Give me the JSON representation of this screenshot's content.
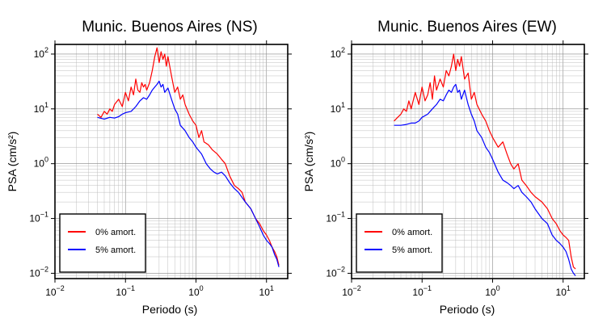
{
  "chart_data": [
    {
      "type": "line",
      "title": "Munic. Buenos Aires (NS)",
      "xlabel": "Periodo (s)",
      "ylabel": "PSA (cm/s²)",
      "xscale": "log",
      "yscale": "log",
      "xlim": [
        0.01,
        20
      ],
      "ylim": [
        0.008,
        150
      ],
      "grid": true,
      "legend_position": "bottom-left",
      "x_ticks": [
        {
          "value": 0.01,
          "base": "10",
          "exp": "−2"
        },
        {
          "value": 0.1,
          "base": "10",
          "exp": "−1"
        },
        {
          "value": 1,
          "base": "10",
          "exp": "0"
        },
        {
          "value": 10,
          "base": "10",
          "exp": "1"
        }
      ],
      "y_ticks": [
        {
          "value": 0.01,
          "base": "10",
          "exp": "−2"
        },
        {
          "value": 0.1,
          "base": "10",
          "exp": "−1"
        },
        {
          "value": 1,
          "base": "10",
          "exp": "0"
        },
        {
          "value": 10,
          "base": "10",
          "exp": "1"
        },
        {
          "value": 100,
          "base": "10",
          "exp": "2"
        }
      ],
      "series": [
        {
          "name": "0% amort.",
          "color": "#ff0000",
          "x": [
            0.04,
            0.045,
            0.05,
            0.055,
            0.06,
            0.065,
            0.07,
            0.08,
            0.09,
            0.1,
            0.11,
            0.12,
            0.13,
            0.14,
            0.15,
            0.16,
            0.17,
            0.18,
            0.19,
            0.2,
            0.22,
            0.24,
            0.26,
            0.28,
            0.3,
            0.32,
            0.34,
            0.36,
            0.38,
            0.4,
            0.45,
            0.5,
            0.55,
            0.6,
            0.65,
            0.7,
            0.8,
            0.9,
            1.0,
            1.1,
            1.2,
            1.3,
            1.5,
            1.7,
            2.0,
            2.3,
            2.6,
            3.0,
            3.5,
            4.0,
            4.5,
            5.0,
            6.0,
            7.0,
            8.0,
            9.0,
            10,
            11,
            12,
            13,
            14,
            15
          ],
          "y": [
            8,
            7,
            9,
            8,
            10,
            9,
            12,
            15,
            11,
            20,
            14,
            25,
            18,
            35,
            22,
            20,
            30,
            25,
            28,
            22,
            30,
            50,
            90,
            130,
            70,
            110,
            80,
            100,
            60,
            90,
            40,
            20,
            25,
            15,
            18,
            12,
            8,
            6,
            5,
            3,
            4,
            2.5,
            2.2,
            1.8,
            1.5,
            1.2,
            1.0,
            0.6,
            0.4,
            0.35,
            0.3,
            0.2,
            0.15,
            0.1,
            0.08,
            0.06,
            0.05,
            0.04,
            0.03,
            0.025,
            0.02,
            0.014
          ]
        },
        {
          "name": "5% amort.",
          "color": "#0000ff",
          "x": [
            0.04,
            0.05,
            0.06,
            0.07,
            0.08,
            0.09,
            0.1,
            0.12,
            0.14,
            0.16,
            0.18,
            0.2,
            0.22,
            0.24,
            0.26,
            0.28,
            0.3,
            0.32,
            0.34,
            0.36,
            0.4,
            0.45,
            0.5,
            0.55,
            0.6,
            0.7,
            0.8,
            0.9,
            1.0,
            1.2,
            1.4,
            1.6,
            1.8,
            2.0,
            2.3,
            2.6,
            3.0,
            3.5,
            4.0,
            5.0,
            6.0,
            7.0,
            8.0,
            9.0,
            10,
            11,
            12,
            13,
            14,
            15
          ],
          "y": [
            7,
            6.5,
            7,
            6.8,
            7.2,
            8,
            8.5,
            9,
            11,
            14,
            16,
            15,
            18,
            22,
            25,
            28,
            32,
            25,
            28,
            20,
            24,
            15,
            10,
            8,
            5,
            4,
            3,
            2.5,
            2.0,
            1.5,
            1.0,
            0.8,
            0.7,
            0.65,
            0.7,
            0.6,
            0.45,
            0.35,
            0.3,
            0.2,
            0.15,
            0.1,
            0.07,
            0.05,
            0.04,
            0.035,
            0.03,
            0.022,
            0.018,
            0.013
          ]
        }
      ]
    },
    {
      "type": "line",
      "title": "Munic. Buenos Aires (EW)",
      "xlabel": "Periodo (s)",
      "ylabel": "PSA (cm/s²)",
      "xscale": "log",
      "yscale": "log",
      "xlim": [
        0.01,
        20
      ],
      "ylim": [
        0.008,
        150
      ],
      "grid": true,
      "legend_position": "bottom-left",
      "x_ticks": [
        {
          "value": 0.01,
          "base": "10",
          "exp": "−2"
        },
        {
          "value": 0.1,
          "base": "10",
          "exp": "−1"
        },
        {
          "value": 1,
          "base": "10",
          "exp": "0"
        },
        {
          "value": 10,
          "base": "10",
          "exp": "1"
        }
      ],
      "y_ticks": [
        {
          "value": 0.01,
          "base": "10",
          "exp": "−2"
        },
        {
          "value": 0.1,
          "base": "10",
          "exp": "−1"
        },
        {
          "value": 1,
          "base": "10",
          "exp": "0"
        },
        {
          "value": 10,
          "base": "10",
          "exp": "1"
        },
        {
          "value": 100,
          "base": "10",
          "exp": "2"
        }
      ],
      "series": [
        {
          "name": "0% amort.",
          "color": "#ff0000",
          "x": [
            0.04,
            0.045,
            0.05,
            0.055,
            0.06,
            0.065,
            0.07,
            0.08,
            0.09,
            0.1,
            0.11,
            0.12,
            0.13,
            0.14,
            0.15,
            0.16,
            0.18,
            0.2,
            0.22,
            0.24,
            0.26,
            0.28,
            0.3,
            0.32,
            0.34,
            0.36,
            0.4,
            0.45,
            0.5,
            0.55,
            0.6,
            0.7,
            0.8,
            0.9,
            1.0,
            1.2,
            1.4,
            1.6,
            1.8,
            2.0,
            2.3,
            2.6,
            3.0,
            3.5,
            4.0,
            5.0,
            6.0,
            7.0,
            8.0,
            9.0,
            10,
            11,
            12,
            13,
            14,
            15
          ],
          "y": [
            6,
            7,
            8,
            10,
            9,
            14,
            10,
            20,
            12,
            25,
            14,
            18,
            30,
            15,
            40,
            22,
            35,
            25,
            50,
            40,
            60,
            100,
            50,
            80,
            60,
            90,
            35,
            45,
            15,
            20,
            12,
            8,
            6,
            4,
            3,
            2.0,
            2.5,
            1.5,
            1.0,
            0.8,
            1.0,
            0.5,
            0.4,
            0.3,
            0.25,
            0.2,
            0.15,
            0.1,
            0.08,
            0.06,
            0.05,
            0.045,
            0.04,
            0.02,
            0.013,
            0.012
          ]
        },
        {
          "name": "5% amort.",
          "color": "#0000ff",
          "x": [
            0.04,
            0.05,
            0.06,
            0.07,
            0.08,
            0.09,
            0.1,
            0.12,
            0.14,
            0.16,
            0.18,
            0.2,
            0.22,
            0.24,
            0.26,
            0.28,
            0.3,
            0.32,
            0.34,
            0.36,
            0.4,
            0.45,
            0.5,
            0.55,
            0.6,
            0.7,
            0.8,
            0.9,
            1.0,
            1.2,
            1.4,
            1.6,
            1.8,
            2.0,
            2.3,
            2.6,
            3.0,
            3.5,
            4.0,
            5.0,
            6.0,
            7.0,
            8.0,
            9.0,
            10,
            11,
            12,
            13,
            14,
            15
          ],
          "y": [
            5,
            5,
            5.2,
            5.5,
            5.5,
            6,
            7,
            8,
            10,
            12,
            15,
            14,
            18,
            22,
            20,
            25,
            28,
            20,
            22,
            15,
            22,
            12,
            8,
            6,
            4,
            3,
            2.0,
            1.6,
            1.2,
            0.7,
            0.5,
            0.45,
            0.4,
            0.35,
            0.4,
            0.3,
            0.25,
            0.2,
            0.15,
            0.1,
            0.08,
            0.05,
            0.04,
            0.035,
            0.03,
            0.025,
            0.018,
            0.012,
            0.01,
            0.009
          ]
        }
      ]
    }
  ]
}
